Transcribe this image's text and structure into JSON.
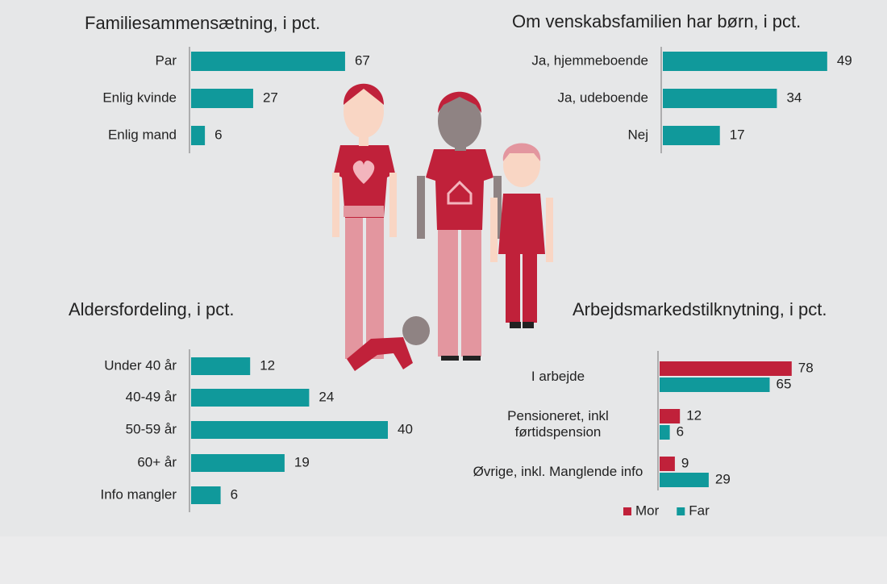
{
  "chart_data": [
    {
      "type": "bar",
      "title": "Familiesammensætning, i pct.",
      "categories": [
        "Par",
        "Enlig kvinde",
        "Enlig mand"
      ],
      "values": [
        67,
        27,
        6
      ],
      "color": "#10999b"
    },
    {
      "type": "bar",
      "title": "Om venskabsfamilien har børn, i pct.",
      "categories": [
        "Ja, hjemmeboende",
        "Ja, udeboende",
        "Nej"
      ],
      "values": [
        49,
        34,
        17
      ],
      "color": "#10999b"
    },
    {
      "type": "bar",
      "title": "Aldersfordeling, i pct.",
      "categories": [
        "Under 40 år",
        "40-49 år",
        "50-59 år",
        "60+ år",
        "Info mangler"
      ],
      "values": [
        12,
        24,
        40,
        19,
        6
      ],
      "color": "#10999b"
    },
    {
      "type": "grouped-bar",
      "title": "Arbejdsmarkedstilknytning, i pct.",
      "categories": [
        "I arbejde",
        "Pensioneret, inkl førtidspension",
        "Øvrige, inkl. Manglende info"
      ],
      "series": [
        {
          "name": "Mor",
          "color": "#c0213a",
          "values": [
            78,
            12,
            9
          ]
        },
        {
          "name": "Far",
          "color": "#10999b",
          "values": [
            65,
            6,
            29
          ]
        }
      ],
      "legend": "bottom"
    }
  ]
}
